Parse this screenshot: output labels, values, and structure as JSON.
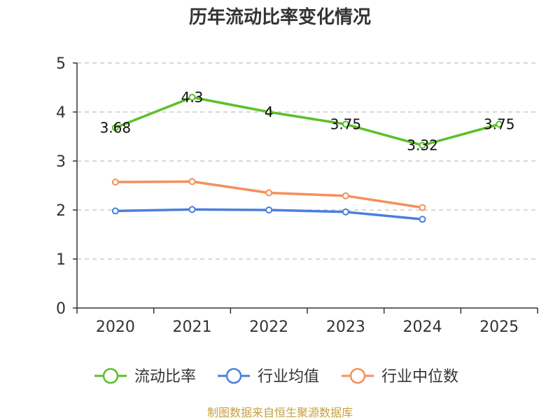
{
  "chart_data": {
    "type": "line",
    "title": "历年流动比率变化情况",
    "xlabel": "",
    "ylabel": "",
    "categories": [
      "2020",
      "2021",
      "2022",
      "2023",
      "2024",
      "2025"
    ],
    "ylim": [
      0,
      5
    ],
    "yticks": [
      "0",
      "1",
      "2",
      "3",
      "4",
      "5"
    ],
    "grid": true,
    "legend_position": "bottom",
    "series": [
      {
        "name": "流动比率",
        "color": "#5cbf2a",
        "values": [
          3.68,
          4.3,
          4,
          3.75,
          3.32,
          3.75
        ],
        "labels": [
          "3.68",
          "4.3",
          "4",
          "3.75",
          "3.32",
          "3.75"
        ],
        "show_labels": true
      },
      {
        "name": "行业均值",
        "color": "#4a7fdc",
        "values": [
          1.98,
          2.01,
          2.0,
          1.96,
          1.81,
          null
        ],
        "show_labels": false
      },
      {
        "name": "行业中位数",
        "color": "#f5905a",
        "values": [
          2.57,
          2.58,
          2.35,
          2.29,
          2.05,
          null
        ],
        "show_labels": false
      }
    ],
    "source": "制图数据来自恒生聚源数据库"
  }
}
